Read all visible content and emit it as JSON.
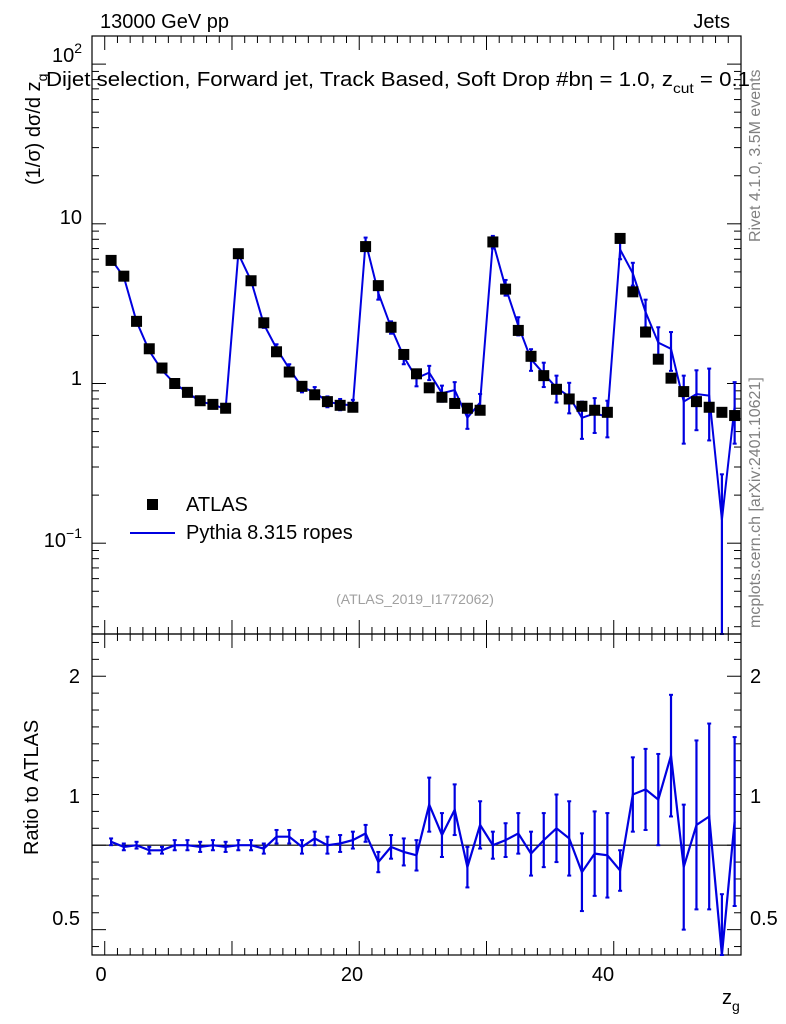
{
  "header": {
    "energy_label": "13000 GeV pp",
    "category_label": "Jets",
    "selection_title_main": "Dijet selection, Forward jet, Track Based, Soft Drop #b",
    "selection_title_eta": "η = 1.0, z",
    "selection_title_sub": "cut",
    "selection_title_tail": " = 0.1"
  },
  "side": {
    "rivet_label": "Rivet 4.1.0,  3.5M events",
    "mcplots_label": "mcplots.cern.ch [arXiv:2401.10621]"
  },
  "analysis_id": "(ATLAS_2019_I1772062)",
  "colors": {
    "mc": "#0000e0",
    "data": "#000000",
    "ref_line": "#000000",
    "side_text": "#808080"
  },
  "chart_data": {
    "type": "line",
    "x_axis": {
      "label": "z",
      "label_sub": "g",
      "range": [
        -1,
        50
      ],
      "ticks": [
        "0",
        "20",
        "40"
      ]
    },
    "main_panel": {
      "y_axis": {
        "label": "(1/σ) dσ/d z",
        "label_sub": "g",
        "scale": "log",
        "range": [
          0.027,
          150
        ],
        "ticks": [
          "10",
          "1"
        ],
        "tick_top_base": "10",
        "tick_top_exp": "2",
        "tick_low_base": "10",
        "tick_low_exp": "−1"
      },
      "legend": {
        "data_label": "ATLAS",
        "mc_label": "Pythia 8.315 ropes",
        "position": "middle-left"
      },
      "x": [
        0.5,
        1.5,
        2.5,
        3.5,
        4.5,
        5.5,
        6.5,
        7.5,
        8.5,
        9.5,
        10.5,
        11.5,
        12.5,
        13.5,
        14.5,
        15.5,
        16.5,
        17.5,
        18.5,
        19.5,
        20.5,
        21.5,
        22.5,
        23.5,
        24.5,
        25.5,
        26.5,
        27.5,
        28.5,
        29.5,
        30.5,
        31.5,
        32.5,
        33.5,
        34.5,
        35.5,
        36.5,
        37.5,
        38.5,
        39.5,
        40.5,
        41.5,
        42.5,
        43.5,
        44.5,
        45.5,
        46.5,
        47.5,
        48.5,
        49.5
      ],
      "series": [
        {
          "name": "ATLAS",
          "values": [
            5.9,
            4.7,
            2.45,
            1.65,
            1.25,
            1.0,
            0.88,
            0.78,
            0.74,
            0.7,
            6.5,
            4.4,
            2.4,
            1.58,
            1.18,
            0.96,
            0.85,
            0.77,
            0.73,
            0.71,
            7.2,
            4.1,
            2.25,
            1.52,
            1.15,
            0.94,
            0.82,
            0.75,
            0.7,
            0.68,
            7.7,
            3.9,
            2.15,
            1.48,
            1.12,
            0.92,
            0.8,
            0.72,
            0.68,
            0.66,
            8.1,
            3.75,
            2.1,
            1.42,
            1.08,
            0.89,
            0.77,
            0.71,
            0.66,
            0.63
          ]
        },
        {
          "name": "Pythia 8.315 ropes",
          "values": [
            6.0,
            4.65,
            2.45,
            1.6,
            1.21,
            1.0,
            0.88,
            0.77,
            0.74,
            0.69,
            6.5,
            4.4,
            2.35,
            1.66,
            1.24,
            0.95,
            0.88,
            0.77,
            0.74,
            0.73,
            7.7,
            3.7,
            2.25,
            1.47,
            1.08,
            1.17,
            0.87,
            0.91,
            0.61,
            0.76,
            7.7,
            4.0,
            2.3,
            1.42,
            1.15,
            0.94,
            0.83,
            0.61,
            0.65,
            0.62,
            6.9,
            4.9,
            2.8,
            1.8,
            1.65,
            0.77,
            0.86,
            0.84,
            0.14,
            0.72
          ]
        }
      ],
      "mc_err": [
        0.12,
        0.09,
        0.06,
        0.04,
        0.04,
        0.03,
        0.03,
        0.03,
        0.03,
        0.03,
        0.3,
        0.2,
        0.12,
        0.1,
        0.08,
        0.07,
        0.07,
        0.06,
        0.06,
        0.06,
        0.5,
        0.35,
        0.2,
        0.15,
        0.12,
        0.12,
        0.1,
        0.11,
        0.09,
        0.1,
        0.7,
        0.45,
        0.3,
        0.22,
        0.2,
        0.18,
        0.18,
        0.16,
        0.16,
        0.16,
        0.9,
        0.8,
        0.55,
        0.45,
        0.45,
        0.35,
        0.35,
        0.4,
        0.13,
        0.3
      ]
    },
    "ratio_panel": {
      "y_axis": {
        "label": "Ratio to ATLAS",
        "range": [
          0.35,
          2.25
        ],
        "ticks": [
          "2",
          "1",
          "0.5"
        ]
      },
      "values": [
        1.02,
        0.99,
        1.0,
        0.97,
        0.97,
        1.0,
        1.0,
        0.99,
        1.0,
        0.99,
        1.0,
        1.0,
        0.98,
        1.05,
        1.05,
        0.99,
        1.04,
        1.0,
        1.01,
        1.03,
        1.07,
        0.9,
        0.99,
        0.96,
        0.94,
        1.24,
        1.06,
        1.21,
        0.87,
        1.12,
        1.0,
        1.03,
        1.07,
        0.95,
        1.03,
        1.1,
        1.04,
        0.84,
        0.95,
        0.94,
        0.85,
        1.3,
        1.33,
        1.27,
        1.53,
        0.87,
        1.12,
        1.17,
        0.21,
        1.14
      ],
      "errors": [
        0.02,
        0.02,
        0.02,
        0.02,
        0.02,
        0.03,
        0.03,
        0.03,
        0.03,
        0.03,
        0.03,
        0.03,
        0.03,
        0.04,
        0.04,
        0.04,
        0.04,
        0.05,
        0.05,
        0.05,
        0.05,
        0.06,
        0.07,
        0.08,
        0.09,
        0.16,
        0.13,
        0.15,
        0.12,
        0.14,
        0.08,
        0.1,
        0.12,
        0.13,
        0.16,
        0.2,
        0.22,
        0.23,
        0.25,
        0.25,
        0.12,
        0.22,
        0.24,
        0.27,
        0.36,
        0.37,
        0.5,
        0.55,
        0.5,
        0.5
      ]
    }
  }
}
